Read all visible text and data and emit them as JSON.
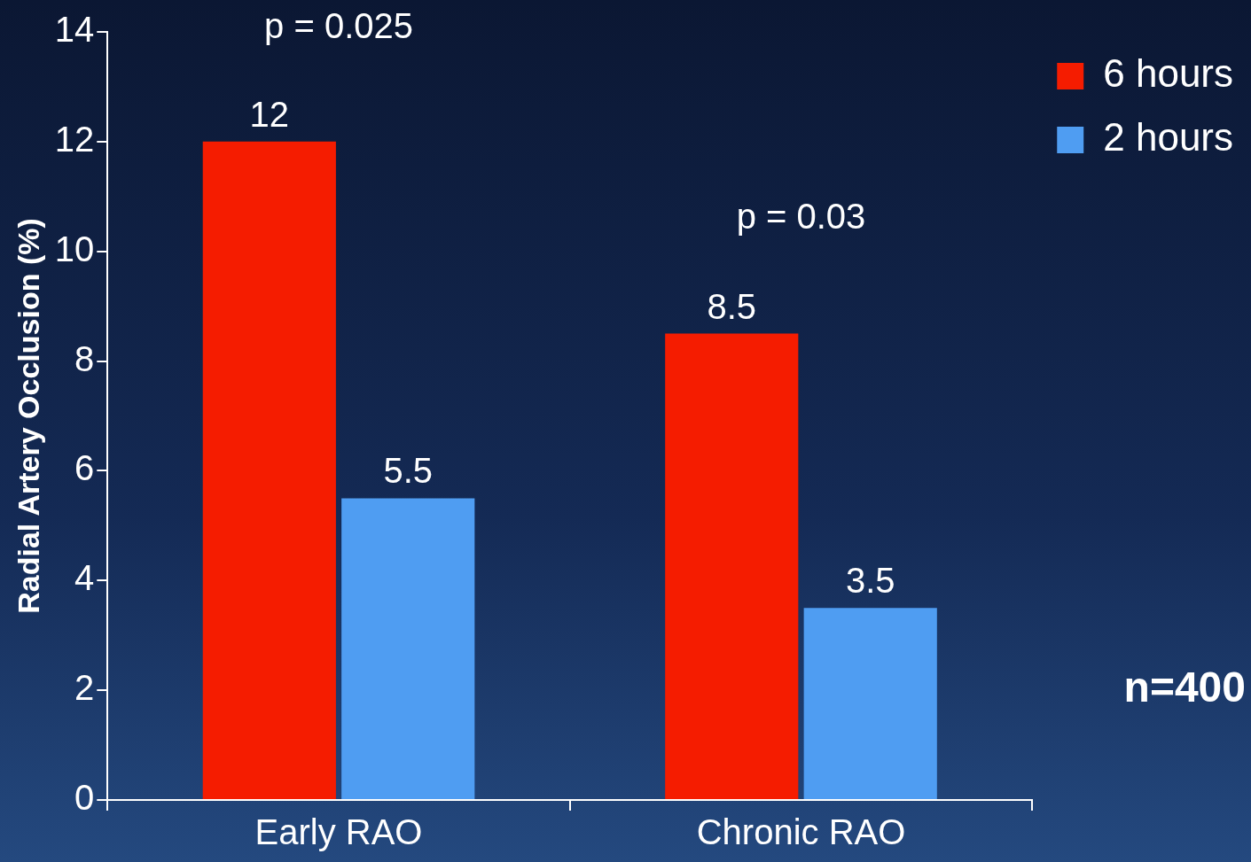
{
  "chart_data": {
    "type": "bar",
    "ylabel": "Radial Artery Occlusion (%)",
    "categories": [
      "Early RAO",
      "Chronic RAO"
    ],
    "series": [
      {
        "name": "6 hours",
        "color": "#f51c00",
        "values": [
          12,
          8.5
        ]
      },
      {
        "name": "2 hours",
        "color": "#4f9df2",
        "values": [
          5.5,
          3.5
        ]
      }
    ],
    "ylim": [
      0,
      14
    ],
    "yticks": [
      0,
      2,
      4,
      6,
      8,
      10,
      12,
      14
    ],
    "grid": false,
    "legend": "top right",
    "data_labels": true,
    "annotations": [
      "p = 0.025",
      "p = 0.03",
      "n=400"
    ]
  }
}
